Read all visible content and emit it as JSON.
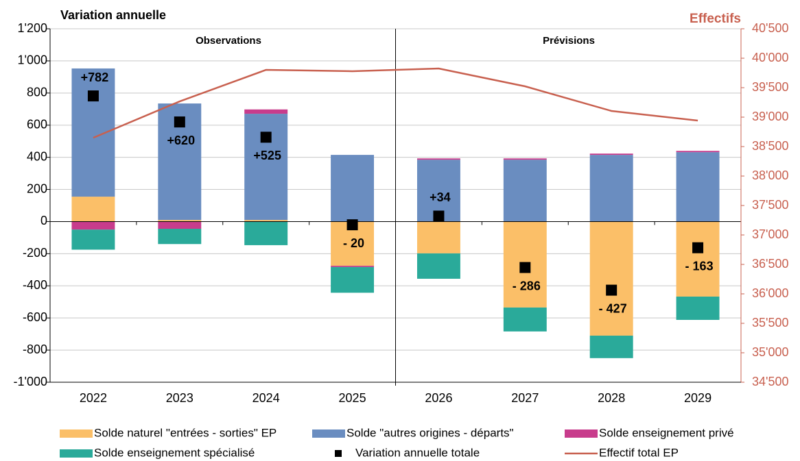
{
  "chart_data": {
    "type": "bar",
    "title": "Variation annuelle",
    "y2_title": "Effectifs",
    "annotations": [
      "Observations",
      "Prévisions"
    ],
    "categories": [
      "2022",
      "2023",
      "2024",
      "2025",
      "2026",
      "2027",
      "2028",
      "2029"
    ],
    "stacked": true,
    "series": [
      {
        "name": "Solde naturel \"entrées - sorties\" EP",
        "type": "bar",
        "color": "#fbbf68",
        "values": [
          155,
          10,
          10,
          -275,
          -198,
          -535,
          -710,
          -467
        ]
      },
      {
        "name": "Solde \"autres origines - départs\"",
        "type": "bar",
        "color": "#6a8dc0",
        "values": [
          798,
          725,
          661,
          415,
          385,
          385,
          415,
          432
        ]
      },
      {
        "name": "Solde enseignement privé",
        "type": "bar",
        "color": "#c83c8c",
        "values": [
          -50,
          -45,
          27,
          -8,
          8,
          8,
          8,
          8
        ]
      },
      {
        "name": "Solde enseignement spécialisé",
        "type": "bar",
        "color": "#2aaa9a",
        "values": [
          -125,
          -95,
          -147,
          -160,
          -158,
          -149,
          -140,
          -145
        ]
      },
      {
        "name": "Variation annuelle totale",
        "type": "marker",
        "color": "#000000",
        "values": [
          782,
          620,
          525,
          -20,
          34,
          -286,
          -427,
          -163
        ],
        "value_labels": [
          "+782",
          "+620",
          "+525",
          "- 20",
          "+34",
          "- 286",
          "- 427",
          "- 163"
        ],
        "value_label_positions": [
          "above",
          "below",
          "below",
          "below",
          "above",
          "below",
          "below",
          "below"
        ]
      },
      {
        "name": "Effectif total EP",
        "type": "line",
        "axis": "y2",
        "color": "#c8604f",
        "values": [
          38650,
          39267,
          39802,
          39779,
          39826,
          39523,
          39105,
          38942
        ]
      }
    ],
    "ylim": [
      -1000,
      1200
    ],
    "yticks": [
      {
        "value": -1000,
        "label": "-1'000"
      },
      -800,
      -600,
      -400,
      -200,
      0,
      200,
      400,
      600,
      800,
      {
        "value": 1000,
        "label": "1'000"
      },
      {
        "value": 1200,
        "label": "1'200"
      }
    ],
    "y2lim": [
      34500,
      40500
    ],
    "y2ticks": [
      {
        "value": 34500,
        "label": "34'500"
      },
      {
        "value": 35000,
        "label": "35'000"
      },
      {
        "value": 35500,
        "label": "35'500"
      },
      {
        "value": 36000,
        "label": "36'000"
      },
      {
        "value": 36500,
        "label": "36'500"
      },
      {
        "value": 37000,
        "label": "37'000"
      },
      {
        "value": 37500,
        "label": "37'500"
      },
      {
        "value": 38000,
        "label": "38'000"
      },
      {
        "value": 38500,
        "label": "38'500"
      },
      {
        "value": 39000,
        "label": "39'000"
      },
      {
        "value": 39500,
        "label": "39'500"
      },
      {
        "value": 40000,
        "label": "40'000"
      },
      {
        "value": 40500,
        "label": "40'500"
      }
    ],
    "y2_color": "#c8604f",
    "grid": true
  }
}
